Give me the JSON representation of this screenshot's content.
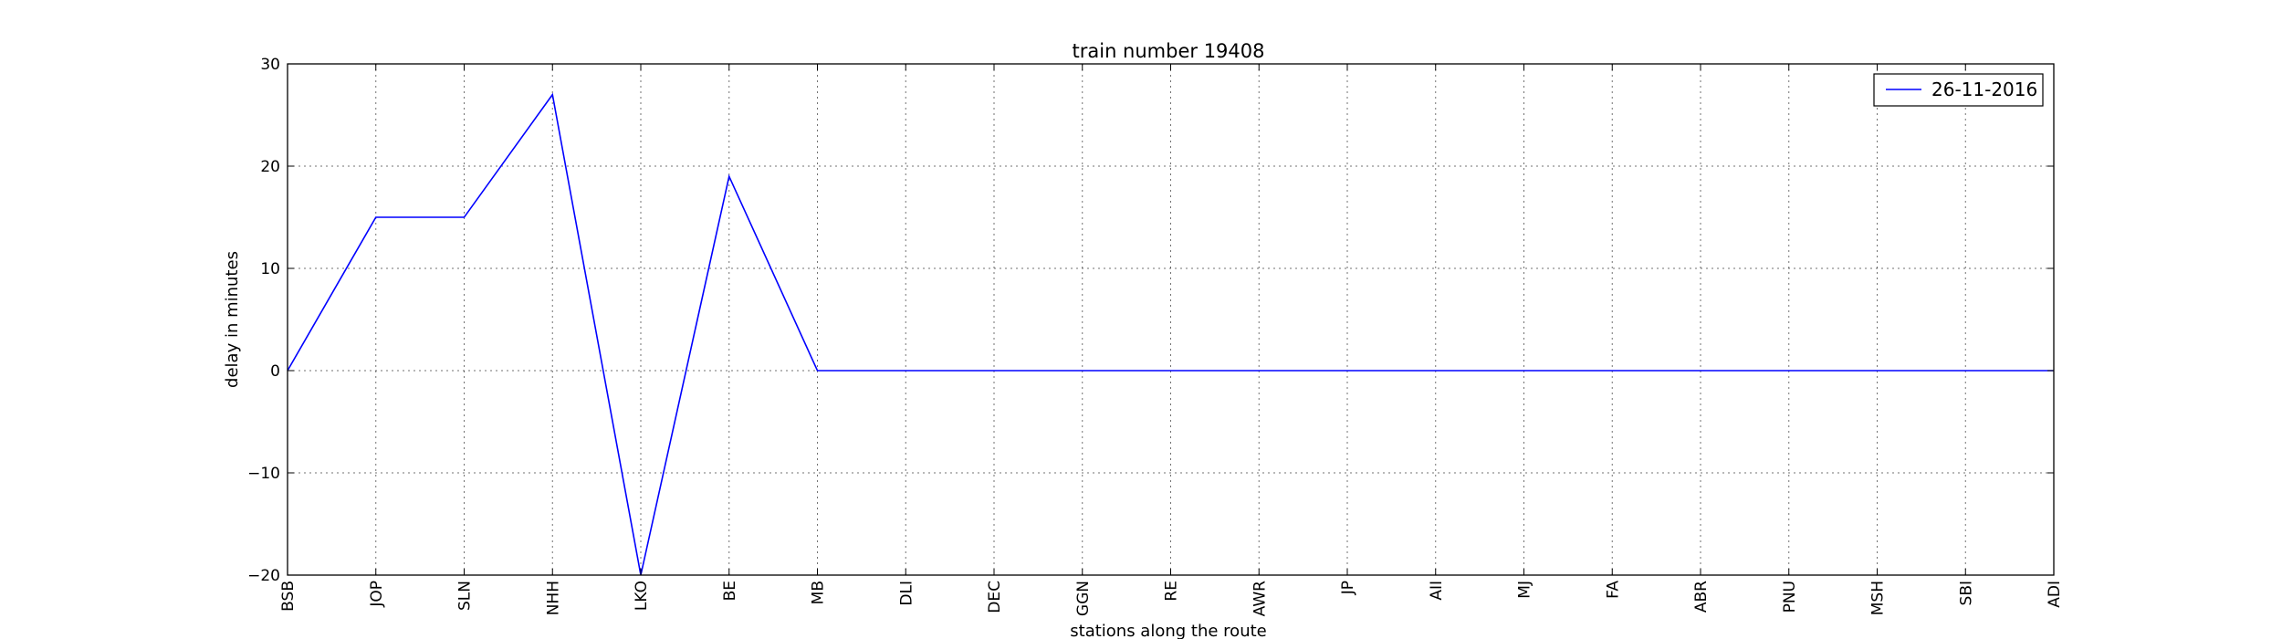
{
  "chart_data": {
    "type": "line",
    "title": "train number 19408",
    "xlabel": "stations along the route",
    "ylabel": "delay in minutes",
    "categories": [
      "BSB",
      "JOP",
      "SLN",
      "NHH",
      "LKO",
      "BE",
      "MB",
      "DLI",
      "DEC",
      "GGN",
      "RE",
      "AWR",
      "JP",
      "AII",
      "MJ",
      "FA",
      "ABR",
      "PNU",
      "MSH",
      "SBI",
      "ADI"
    ],
    "series": [
      {
        "name": "26-11-2016",
        "color": "#0000ff",
        "values": [
          0,
          15,
          15,
          27,
          -20,
          19,
          0,
          0,
          0,
          0,
          0,
          0,
          0,
          0,
          0,
          0,
          0,
          0,
          0,
          0,
          0
        ]
      }
    ],
    "ylim": [
      -20,
      30
    ],
    "yticks": [
      -20,
      -10,
      0,
      10,
      20,
      30
    ],
    "ytick_labels": [
      "−20",
      "−10",
      "0",
      "10",
      "20",
      "30"
    ],
    "grid": true,
    "legend_position": "top-right"
  }
}
